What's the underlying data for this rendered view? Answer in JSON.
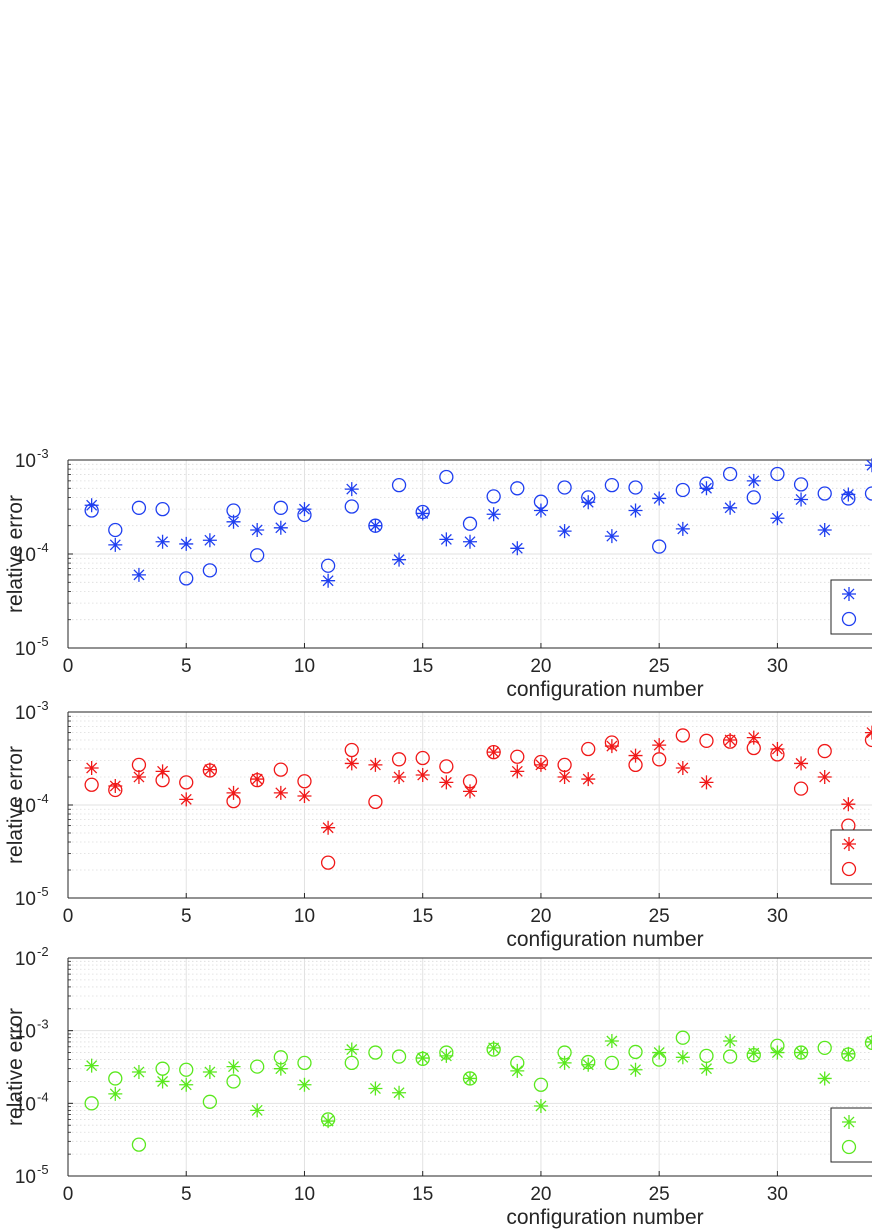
{
  "chart_data": [
    {
      "type": "scatter",
      "color": "#1f3ff0",
      "xlabel": "configuration number",
      "ylabel": "relative error",
      "xlim": [
        0,
        34
      ],
      "ylim": [
        1e-05,
        0.001
      ],
      "yscale": "log",
      "x_ticks": [
        0,
        5,
        10,
        15,
        20,
        25,
        30
      ],
      "y_ticks": [
        {
          "value": 1e-05,
          "exp": "-5"
        },
        {
          "value": 0.0001,
          "exp": "-4"
        },
        {
          "value": 0.001,
          "exp": "-3"
        }
      ],
      "grid": true,
      "legend": "bottom-right",
      "series": [
        {
          "marker": "asterisk",
          "x": [
            1,
            2,
            3,
            4,
            5,
            6,
            7,
            8,
            9,
            10,
            11,
            12,
            13,
            14,
            15,
            16,
            17,
            18,
            19,
            20,
            21,
            22,
            23,
            24,
            25,
            26,
            27,
            28,
            29,
            30,
            31,
            32,
            33,
            34
          ],
          "y": [
            0.00033,
            0.000125,
            6e-05,
            0.000135,
            0.000128,
            0.00014,
            0.00022,
            0.00018,
            0.00019,
            0.0003,
            5.2e-05,
            0.00049,
            0.0002,
            8.7e-05,
            0.00027,
            0.000143,
            0.000135,
            0.000265,
            0.000115,
            0.00029,
            0.000175,
            0.000355,
            0.000155,
            0.00029,
            0.00039,
            0.000185,
            0.0005,
            0.00031,
            0.0006,
            0.00024,
            0.00038,
            0.00018,
            0.00043,
            0.00088
          ]
        },
        {
          "marker": "circle",
          "x": [
            1,
            2,
            3,
            4,
            5,
            6,
            7,
            8,
            9,
            10,
            11,
            12,
            13,
            14,
            15,
            16,
            17,
            18,
            19,
            20,
            21,
            22,
            23,
            24,
            25,
            26,
            27,
            28,
            29,
            30,
            31,
            32,
            33,
            34
          ],
          "y": [
            0.00029,
            0.00018,
            0.00031,
            0.0003,
            5.5e-05,
            6.7e-05,
            0.00029,
            9.7e-05,
            0.00031,
            0.00026,
            7.5e-05,
            0.00032,
            0.0002,
            0.00054,
            0.00028,
            0.00066,
            0.00021,
            0.00041,
            0.0005,
            0.00036,
            0.00051,
            0.0004,
            0.00054,
            0.00051,
            0.00012,
            0.00048,
            0.00056,
            0.00071,
            0.0004,
            0.00071,
            0.00055,
            0.00044,
            0.00039,
            0.00044
          ]
        }
      ]
    },
    {
      "type": "scatter",
      "color": "#f01818",
      "xlabel": "configuration number",
      "ylabel": "relative error",
      "xlim": [
        0,
        34
      ],
      "ylim": [
        1e-05,
        0.001
      ],
      "yscale": "log",
      "x_ticks": [
        0,
        5,
        10,
        15,
        20,
        25,
        30
      ],
      "y_ticks": [
        {
          "value": 1e-05,
          "exp": "-5"
        },
        {
          "value": 0.0001,
          "exp": "-4"
        },
        {
          "value": 0.001,
          "exp": "-3"
        }
      ],
      "grid": true,
      "legend": "bottom-right",
      "series": [
        {
          "marker": "asterisk",
          "x": [
            1,
            2,
            3,
            4,
            5,
            6,
            7,
            8,
            9,
            10,
            11,
            12,
            13,
            14,
            15,
            16,
            17,
            18,
            19,
            20,
            21,
            22,
            23,
            24,
            25,
            26,
            27,
            28,
            29,
            30,
            31,
            32,
            33,
            34
          ],
          "y": [
            0.00025,
            0.00016,
            0.0002,
            0.00023,
            0.000115,
            0.00024,
            0.000135,
            0.00019,
            0.000135,
            0.000125,
            5.7e-05,
            0.00028,
            0.00027,
            0.0002,
            0.00021,
            0.000175,
            0.00014,
            0.00037,
            0.00023,
            0.00027,
            0.0002,
            0.00019,
            0.00043,
            0.00034,
            0.00044,
            0.00025,
            0.000175,
            0.0005,
            0.00053,
            0.0004,
            0.00028,
            0.0002,
            0.000102,
            0.0006
          ]
        },
        {
          "marker": "circle",
          "x": [
            1,
            2,
            3,
            4,
            5,
            6,
            7,
            8,
            9,
            10,
            11,
            12,
            13,
            14,
            15,
            16,
            17,
            18,
            19,
            20,
            21,
            22,
            23,
            24,
            25,
            26,
            27,
            28,
            29,
            30,
            31,
            32,
            33,
            34
          ],
          "y": [
            0.000165,
            0.000145,
            0.00027,
            0.000185,
            0.000175,
            0.000235,
            0.00011,
            0.000185,
            0.00024,
            0.00018,
            2.4e-05,
            0.00039,
            0.000108,
            0.00031,
            0.00032,
            0.00026,
            0.00018,
            0.00037,
            0.00033,
            0.00029,
            0.00027,
            0.0004,
            0.00047,
            0.00027,
            0.00031,
            0.00056,
            0.00049,
            0.00048,
            0.00041,
            0.00035,
            0.00015,
            0.00038,
            6e-05,
            0.0005
          ]
        }
      ]
    },
    {
      "type": "scatter",
      "color": "#5ae81e",
      "xlabel": "configuration number",
      "ylabel": "relative error",
      "xlim": [
        0,
        34
      ],
      "ylim": [
        1e-05,
        0.01
      ],
      "yscale": "log",
      "x_ticks": [
        0,
        5,
        10,
        15,
        20,
        25,
        30
      ],
      "y_ticks": [
        {
          "value": 1e-05,
          "exp": "-5"
        },
        {
          "value": 0.0001,
          "exp": "-4"
        },
        {
          "value": 0.001,
          "exp": "-3"
        },
        {
          "value": 0.01,
          "exp": "-2"
        }
      ],
      "grid": true,
      "legend": "bottom-right",
      "series": [
        {
          "marker": "asterisk",
          "x": [
            1,
            2,
            3,
            4,
            5,
            6,
            7,
            8,
            9,
            10,
            11,
            12,
            13,
            14,
            15,
            16,
            17,
            18,
            19,
            20,
            21,
            22,
            23,
            24,
            25,
            26,
            27,
            28,
            29,
            30,
            31,
            32,
            33,
            34
          ],
          "y": [
            0.00033,
            0.000135,
            0.00027,
            0.0002,
            0.00018,
            0.00027,
            0.00032,
            8e-05,
            0.0003,
            0.00018,
            5.7e-05,
            0.00055,
            0.00016,
            0.00014,
            0.00042,
            0.00045,
            0.00022,
            0.00058,
            0.00028,
            9.2e-05,
            0.00036,
            0.00034,
            0.00072,
            0.00029,
            0.0005,
            0.00043,
            0.0003,
            0.00072,
            0.00049,
            0.0005,
            0.0005,
            0.00022,
            0.00048,
            0.0007
          ]
        },
        {
          "marker": "circle",
          "x": [
            1,
            2,
            3,
            4,
            5,
            6,
            7,
            8,
            9,
            10,
            11,
            12,
            13,
            14,
            15,
            16,
            17,
            18,
            19,
            20,
            21,
            22,
            23,
            24,
            25,
            26,
            27,
            28,
            29,
            30,
            31,
            32,
            33,
            34
          ],
          "y": [
            0.0001,
            0.00022,
            2.7e-05,
            0.0003,
            0.00029,
            0.000105,
            0.0002,
            0.00032,
            0.00043,
            0.00036,
            6e-05,
            0.00036,
            0.0005,
            0.00044,
            0.00041,
            0.0005,
            0.00022,
            0.00055,
            0.00036,
            0.00018,
            0.0005,
            0.00037,
            0.00036,
            0.00051,
            0.0004,
            0.0008,
            0.00045,
            0.00044,
            0.00046,
            0.00062,
            0.0005,
            0.00058,
            0.00047,
            0.00068
          ]
        }
      ]
    }
  ]
}
